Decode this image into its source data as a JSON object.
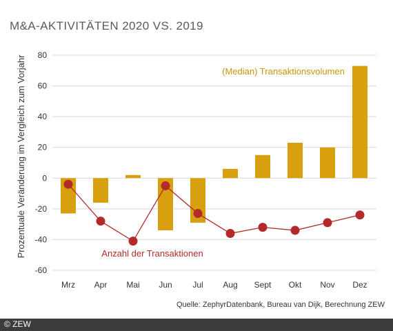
{
  "title": "M&A-AKTIVITÄTEN 2020 VS. 2019",
  "source": "Quelle: ZephyrDatenbank, Bureau van Dijk, Berechnung ZEW",
  "copyright": "© ZEW",
  "colors": {
    "bar": "#d8a00f",
    "line": "#b22a2a",
    "bar_label": "#c8960a",
    "line_label": "#b22a2a",
    "grid": "#d8d8d8",
    "axis_text": "#333333"
  },
  "chart_data": {
    "type": "bar",
    "categories": [
      "Mrz",
      "Apr",
      "Mai",
      "Jun",
      "Jul",
      "Aug",
      "Sept",
      "Okt",
      "Nov",
      "Dez"
    ],
    "ylabel": "Prozentuale Veränderung im Vergleich zum Vorjahr",
    "ylim": [
      -60,
      80
    ],
    "yticks": [
      80,
      60,
      40,
      20,
      0,
      -20,
      -40,
      -60
    ],
    "ytick_labels": [
      "80",
      "60",
      "40",
      "20",
      "0",
      "-20",
      "-40",
      "-60"
    ],
    "grid": true,
    "series": [
      {
        "name": "(Median) Transaktionsvolumen",
        "type": "bar",
        "values": [
          -23,
          -16,
          2,
          -34,
          -29,
          6,
          15,
          23,
          20,
          73
        ]
      },
      {
        "name": "Anzahl der Transaktionen",
        "type": "line",
        "values": [
          -4,
          -28,
          -41,
          -5,
          -23,
          -36,
          -32,
          -34,
          -29,
          -24
        ]
      }
    ]
  }
}
